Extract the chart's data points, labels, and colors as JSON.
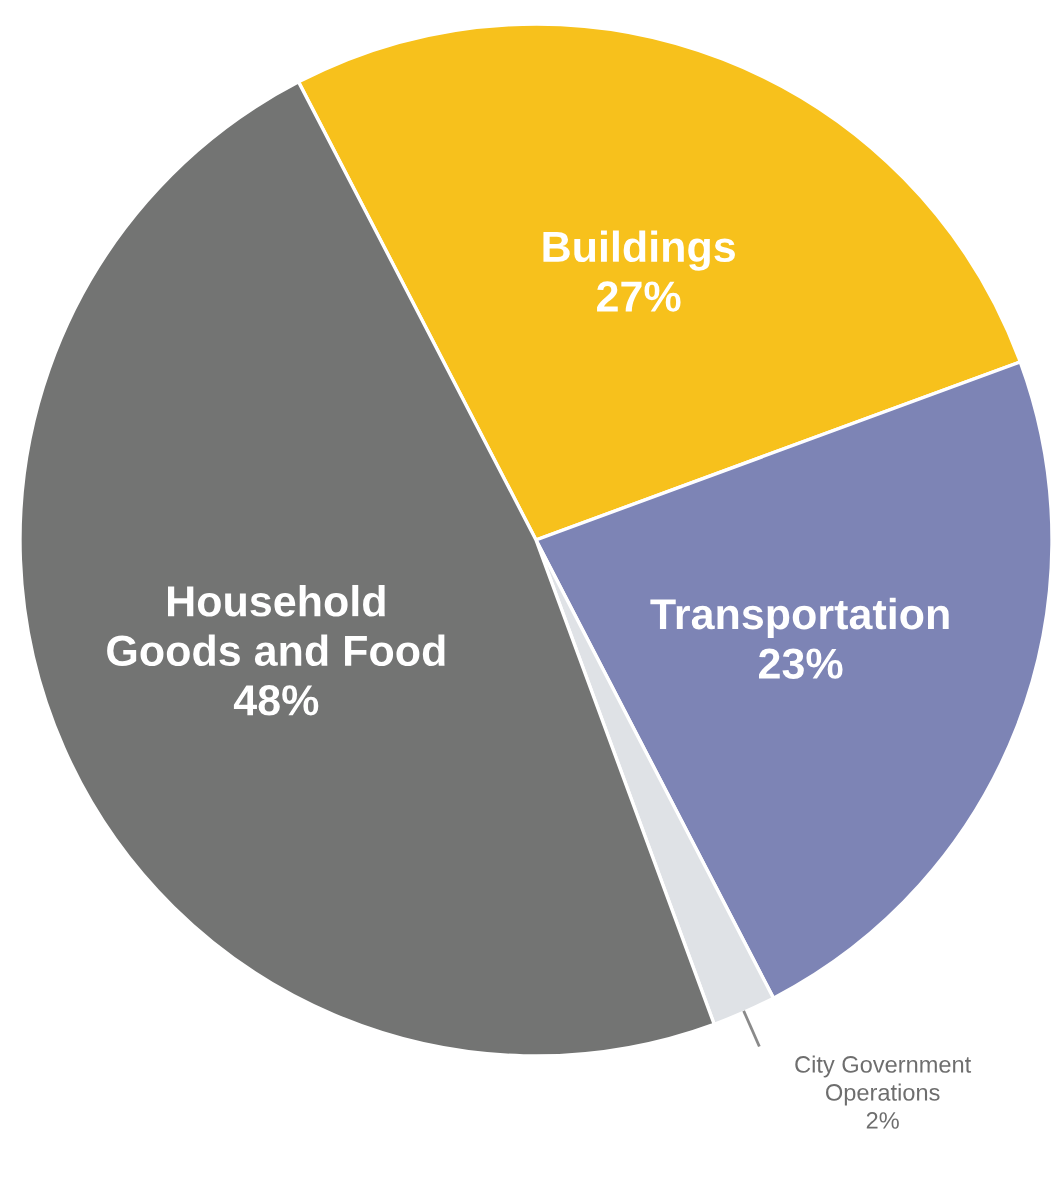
{
  "chart_data": {
    "type": "pie",
    "categories": [
      "Buildings",
      "Transportation",
      "City Government\nOperations",
      "Household\nGoods and Food"
    ],
    "values": [
      27,
      23,
      2,
      48
    ],
    "colors": [
      "#f7c11c",
      "#7d84b5",
      "#dfe2e6",
      "#737473"
    ],
    "value_labels": [
      "27%",
      "23%",
      "2%",
      "48%"
    ]
  }
}
